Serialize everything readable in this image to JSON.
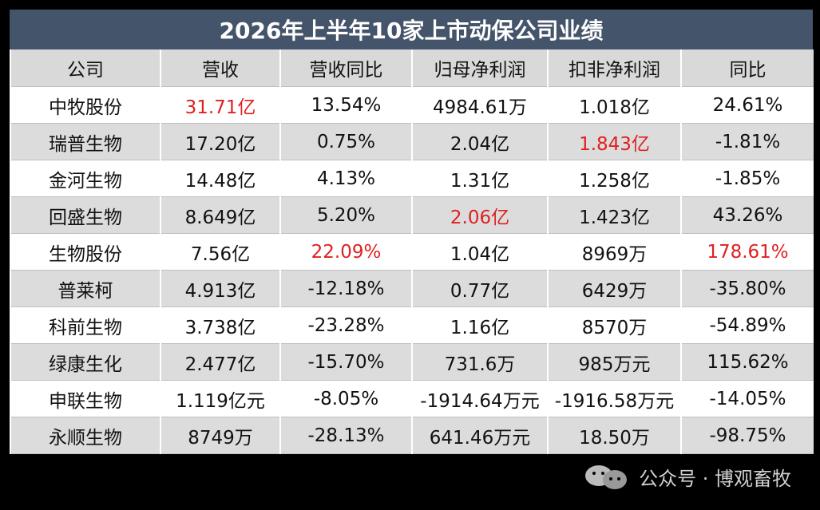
{
  "title": "2026年上半年10家上市动保公司业绩",
  "table": {
    "header": [
      "公司",
      "营收",
      "营收同比",
      "归母净利润",
      "扣非净利润",
      "同比"
    ],
    "rows": [
      [
        "中牧股份",
        "31.71亿",
        "13.54%",
        "4984.61万",
        "1.018亿",
        "24.61%"
      ],
      [
        "瑞普生物",
        "17.20亿",
        "0.75%",
        "2.04亿",
        "1.843亿",
        "-1.81%"
      ],
      [
        "金河生物",
        "14.48亿",
        "4.13%",
        "1.31亿",
        "1.258亿",
        "-1.85%"
      ],
      [
        "回盛生物",
        "8.649亿",
        "5.20%",
        "2.06亿",
        "1.423亿",
        "43.26%"
      ],
      [
        "生物股份",
        "7.56亿",
        "22.09%",
        "1.04亿",
        "8969万",
        "178.61%"
      ],
      [
        "普莱柯",
        "4.913亿",
        "-12.18%",
        "0.77亿",
        "6429万",
        "-35.80%"
      ],
      [
        "科前生物",
        "3.738亿",
        "-23.28%",
        "1.16亿",
        "8570万",
        "-54.89%"
      ],
      [
        "绿康生化",
        "2.477亿",
        "-15.70%",
        "731.6万",
        "985万元",
        "115.62%"
      ],
      [
        "申联生物",
        "1.119亿元",
        "-8.05%",
        "-1914.64万元",
        "-1916.58万元",
        "-14.05%"
      ],
      [
        "永顺生物",
        "8749万",
        "-28.13%",
        "641.46万元",
        "18.50万",
        "-98.75%"
      ]
    ]
  },
  "footer": "公众号 · 博观畜牧"
}
